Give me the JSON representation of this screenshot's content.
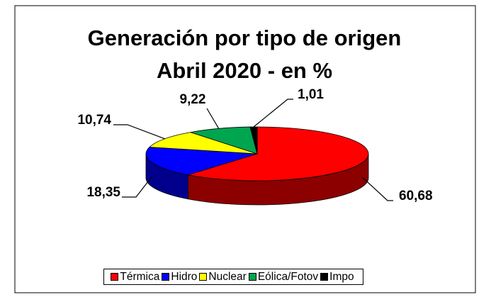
{
  "chart_data": {
    "type": "pie",
    "title": [
      "Generación por tipo de origen",
      "Abril 2020 - en %"
    ],
    "categories": [
      "Térmica",
      "Hidro",
      "Nuclear",
      "Eólica/Fotov",
      "Impo"
    ],
    "values": [
      60.68,
      18.35,
      10.74,
      9.22,
      1.01
    ],
    "value_labels": [
      "60,68",
      "18,35",
      "10,74",
      "9,22",
      "1,01"
    ],
    "colors": [
      "#ff0000",
      "#0000ff",
      "#ffff00",
      "#00a550",
      "#000000"
    ],
    "legend": "bottom"
  }
}
